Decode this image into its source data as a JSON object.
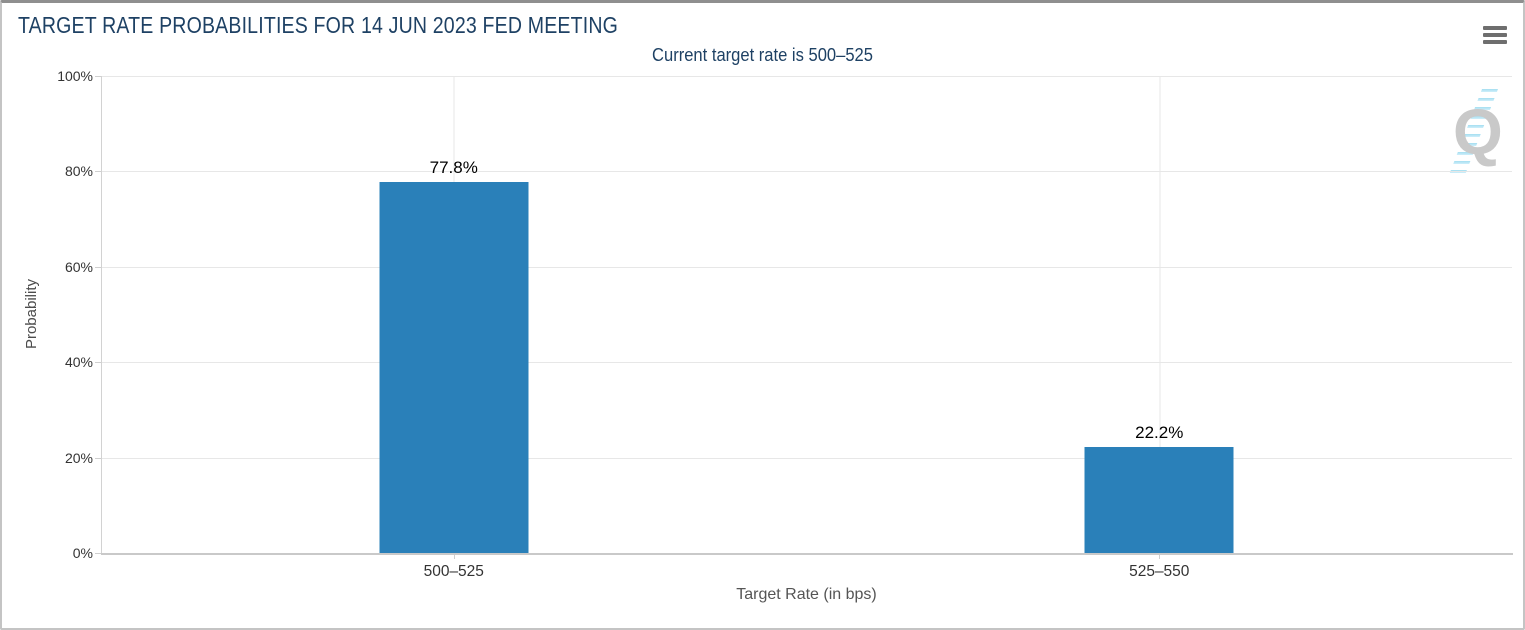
{
  "chart_data": {
    "type": "bar",
    "title": "TARGET RATE PROBABILITIES FOR 14 JUN 2023 FED MEETING",
    "subtitle": "Current target rate is 500–525",
    "categories": [
      "500–525",
      "525–550"
    ],
    "values": [
      77.8,
      22.2
    ],
    "value_labels": [
      "77.8%",
      "22.2%"
    ],
    "xlabel": "Target Rate (in bps)",
    "ylabel": "Probability",
    "ylim": [
      0,
      100
    ],
    "ytick_interval": 20,
    "yticks": [
      "0%",
      "20%",
      "40%",
      "60%",
      "80%",
      "100%"
    ],
    "grid": true,
    "legend_position": "none",
    "bar_color": "#2a80b9"
  },
  "colors": {
    "title_text": "#1e4164",
    "bar": "#2a80b9",
    "watermark_letter": "#c9c9c9",
    "watermark_streak": "#9fdcf0"
  },
  "watermark": {
    "letter": "Q"
  },
  "toolbar": {
    "context_menu_icon": "hamburger-icon"
  }
}
